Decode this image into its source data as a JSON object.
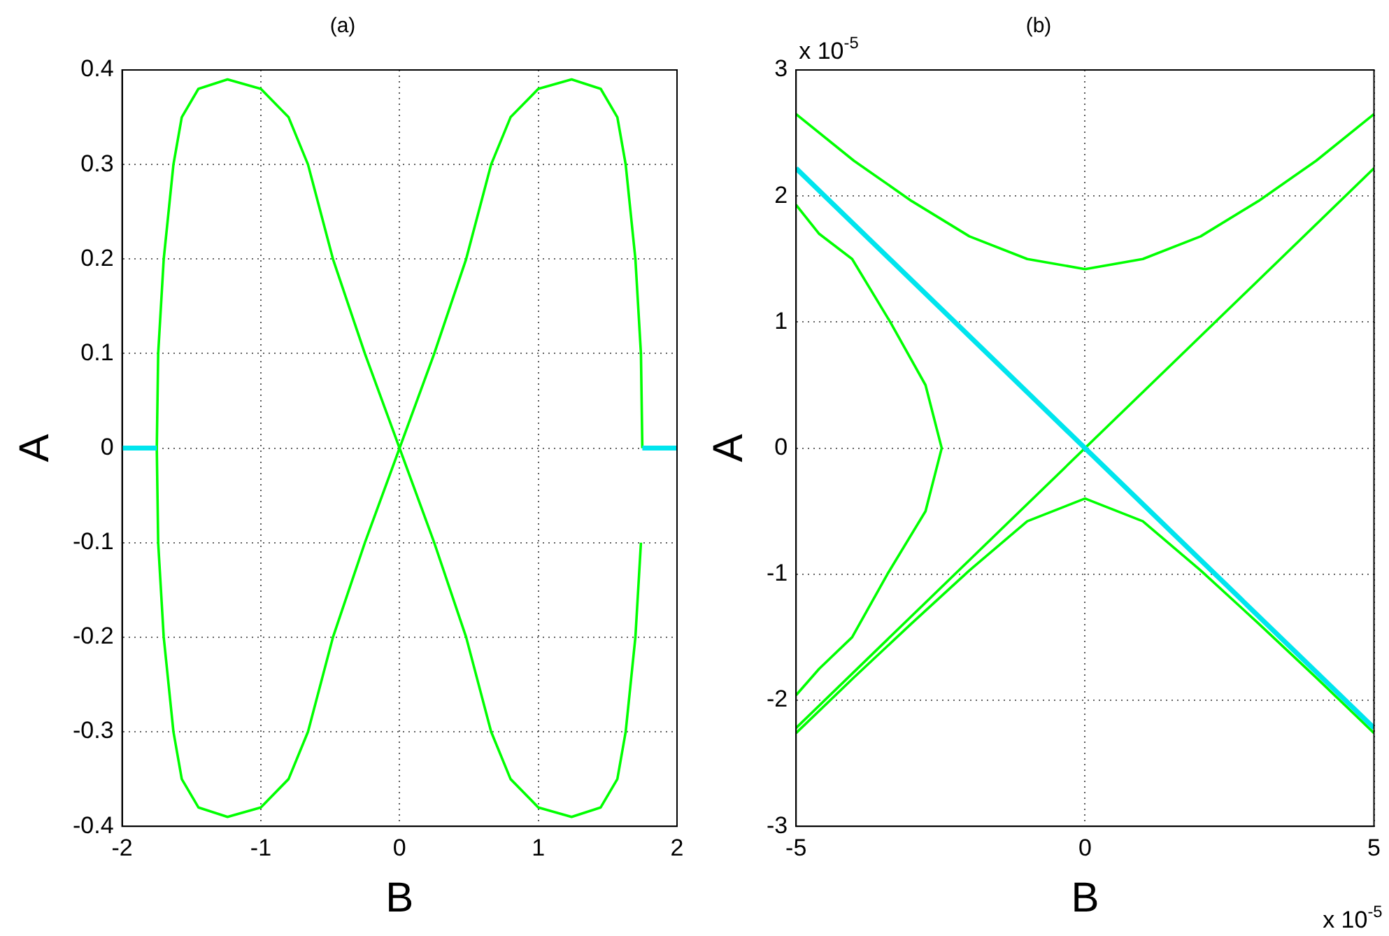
{
  "chart_data": [
    {
      "type": "line",
      "title": "(a)",
      "xlabel": "B",
      "ylabel": "A",
      "xlim": [
        -2,
        2
      ],
      "xticks": [
        -2,
        -1,
        0,
        1,
        2
      ],
      "ylim": [
        -0.4,
        0.4
      ],
      "yticks": [
        -0.4,
        -0.3,
        -0.2,
        -0.1,
        0,
        0.1,
        0.2,
        0.3,
        0.4
      ],
      "grid": true,
      "line_style": "solid",
      "series": [
        {
          "color": "#00ff00",
          "x": [
            1.75,
            1.74,
            1.7,
            1.63,
            1.57,
            1.45,
            1.24,
            1.0,
            0.8,
            0.66,
            0.48,
            0.25,
            0,
            -0.25,
            -0.48,
            -0.66,
            -0.8,
            -1.0,
            -1.24,
            -1.45,
            -1.57,
            -1.63,
            -1.7,
            -1.74,
            -1.75,
            -1.74,
            -1.7,
            -1.63,
            -1.57,
            -1.45,
            -1.24,
            -1.0,
            -0.8,
            -0.66,
            -0.48,
            -0.25,
            0,
            0.25,
            0.48,
            0.66,
            0.8,
            1.0,
            1.24,
            1.45,
            1.57,
            1.63,
            1.7,
            1.74
          ],
          "values": [
            0,
            0.1,
            0.2,
            0.3,
            0.35,
            0.38,
            0.39,
            0.38,
            0.35,
            0.3,
            0.2,
            0.1,
            0,
            -0.1,
            -0.2,
            -0.3,
            -0.35,
            -0.38,
            -0.39,
            -0.38,
            -0.35,
            -0.3,
            -0.2,
            -0.1,
            0,
            0.1,
            0.2,
            0.3,
            0.35,
            0.38,
            0.39,
            0.38,
            0.35,
            0.3,
            0.2,
            0.1,
            0,
            -0.1,
            -0.2,
            -0.3,
            -0.35,
            -0.38,
            -0.39,
            -0.38,
            -0.35,
            -0.3,
            -0.2,
            -0.1
          ]
        },
        {
          "color": "#00e5ee",
          "x": [
            -2,
            -1.75,
            0,
            1.75,
            2
          ],
          "values": [
            0,
            0,
            null,
            0,
            0
          ]
        }
      ]
    },
    {
      "type": "line",
      "title": "(b)",
      "xlabel": "B",
      "ylabel": "A",
      "annotations": [
        "x 10$^{-5}$",
        "x 10$^{-5}$"
      ],
      "xlim": [
        -5,
        5
      ],
      "xticks": [
        -5,
        0,
        5
      ],
      "ylim": [
        -3,
        3
      ],
      "yticks": [
        -3,
        -2,
        -1,
        0,
        1,
        2,
        3
      ],
      "grid": true,
      "line_style": "solid",
      "series": [
        {
          "color": "#00ff00",
          "x": [
            -5,
            -4,
            -3,
            -2,
            -1,
            0,
            1,
            2,
            3,
            4,
            5
          ],
          "values": [
            2.65,
            2.28,
            1.96,
            1.68,
            1.5,
            1.42,
            1.5,
            1.68,
            1.96,
            2.28,
            2.65
          ]
        },
        {
          "color": "#00ff00",
          "x": [
            -5,
            -4,
            -3,
            -2,
            -1,
            0,
            1,
            2,
            3,
            4,
            5
          ],
          "values": [
            -2.26,
            -1.82,
            -1.39,
            -0.97,
            -0.58,
            -0.4,
            -0.58,
            -0.97,
            -1.39,
            -1.82,
            -2.26
          ]
        },
        {
          "color": "#00ff00",
          "x": [
            -5,
            -4.6,
            -4.03,
            -3.37,
            -2.76,
            -2.48,
            -2.76,
            -3.42,
            -4.03,
            -4.6,
            -5
          ],
          "values": [
            1.93,
            1.7,
            1.5,
            1,
            0.5,
            0,
            -0.5,
            -1,
            -1.5,
            -1.75,
            -1.96
          ]
        },
        {
          "color": "#00ff00",
          "x": [
            -5,
            5
          ],
          "values": [
            -2.22,
            2.22
          ]
        },
        {
          "color": "#00e5ee",
          "x": [
            -5,
            5
          ],
          "values": [
            2.22,
            -2.22
          ]
        }
      ]
    }
  ]
}
